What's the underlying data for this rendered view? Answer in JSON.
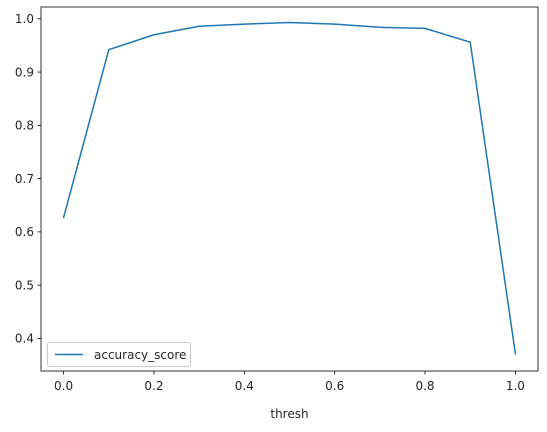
{
  "chart_data": {
    "type": "line",
    "title": "",
    "xlabel": "thresh",
    "ylabel": "",
    "x": [
      0.0,
      0.1,
      0.2,
      0.3,
      0.4,
      0.5,
      0.6,
      0.7,
      0.8,
      0.9,
      1.0
    ],
    "series": [
      {
        "name": "accuracy_score",
        "color": "#1f77b4",
        "values": [
          0.627,
          0.942,
          0.97,
          0.986,
          0.99,
          0.993,
          0.99,
          0.984,
          0.982,
          0.956,
          0.371
        ]
      }
    ],
    "xlim": [
      -0.05,
      1.05
    ],
    "ylim": [
      0.3389,
      1.0221
    ],
    "xticks": [
      0.0,
      0.2,
      0.4,
      0.6,
      0.8,
      1.0
    ],
    "xtick_labels": [
      "0.0",
      "0.2",
      "0.4",
      "0.6",
      "0.8",
      "1.0"
    ],
    "yticks": [
      0.4,
      0.5,
      0.6,
      0.7,
      0.8,
      0.9,
      1.0
    ],
    "ytick_labels": [
      "0.4",
      "0.5",
      "0.6",
      "0.7",
      "0.8",
      "0.9",
      "1.0"
    ],
    "grid": false,
    "legend_position": "lower-left"
  }
}
